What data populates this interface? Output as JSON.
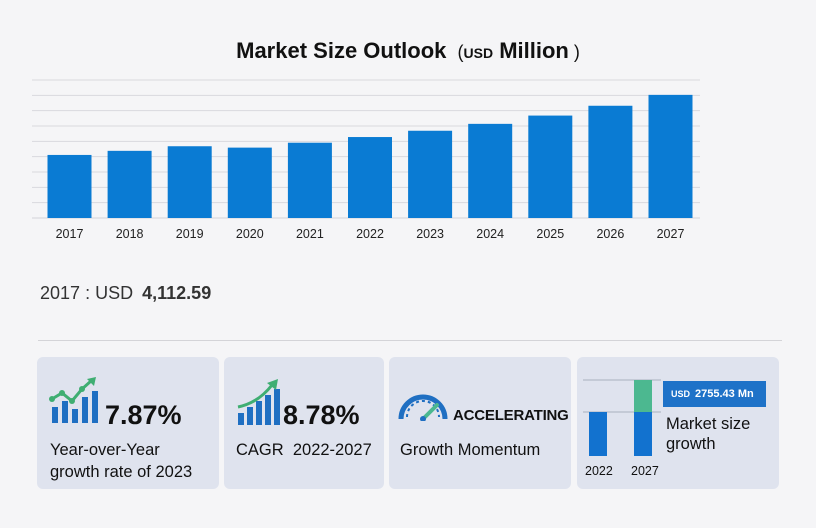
{
  "colors": {
    "bar": "#0a7bd3",
    "grid": "#d9d9de",
    "icon": "#1f6fc2",
    "green": "#3fae72",
    "teal": "#4cb890"
  },
  "chart_data": {
    "type": "bar",
    "title": "Market Size Outlook",
    "title_unit_prefix": "USD",
    "title_unit": "Million",
    "categories": [
      "2017",
      "2018",
      "2019",
      "2020",
      "2021",
      "2022",
      "2023",
      "2024",
      "2025",
      "2026",
      "2027"
    ],
    "values": [
      4112.59,
      4380,
      4680,
      4590,
      4910,
      5280,
      5690,
      6140,
      6680,
      7320,
      8030
    ],
    "ylim": [
      0,
      9000
    ],
    "grid": true,
    "legend": "none"
  },
  "base_year": {
    "year": "2017",
    "separator": ":",
    "currency": "USD",
    "value": "4,112.59"
  },
  "cards": {
    "yoy": {
      "icon": "chart-growth-icon",
      "value": "7.87%",
      "label_line1": "Year-over-Year",
      "label_line2": "growth rate of 2023"
    },
    "cagr": {
      "icon": "chart-up-icon",
      "value": "8.78%",
      "label": "CAGR  2022-2027"
    },
    "momentum": {
      "icon": "speedometer-icon",
      "tag": "ACCELERATING",
      "label": "Growth Momentum"
    },
    "market": {
      "currency": "USD",
      "amount": "2755.43 Mn",
      "label_line1": "Market size",
      "label_line2": "growth",
      "year_start": "2022",
      "year_end": "2027"
    }
  }
}
